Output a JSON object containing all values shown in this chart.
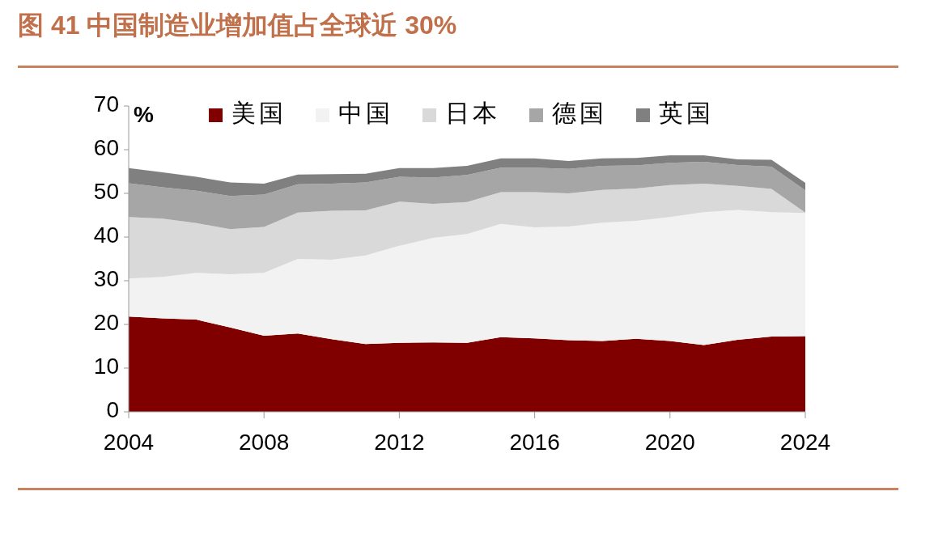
{
  "chart_data": {
    "type": "area",
    "stacked": true,
    "title": "图 41 中国制造业增加值占全球近 30%",
    "ylabel": "%",
    "x": [
      2004,
      2005,
      2006,
      2007,
      2008,
      2009,
      2010,
      2011,
      2012,
      2013,
      2014,
      2015,
      2016,
      2017,
      2018,
      2019,
      2020,
      2021,
      2022,
      2023,
      2024
    ],
    "xlim": [
      2004,
      2024
    ],
    "xticks": [
      2004,
      2008,
      2012,
      2016,
      2020,
      2024
    ],
    "ylim": [
      0,
      70
    ],
    "yticks": [
      0,
      10,
      20,
      30,
      40,
      50,
      60,
      70
    ],
    "legend": "top",
    "grid": false,
    "series": [
      {
        "name": "美国",
        "color": "#800000",
        "values": [
          21.8,
          21.4,
          21.1,
          19.3,
          17.4,
          17.9,
          16.6,
          15.5,
          15.8,
          15.9,
          15.8,
          17.1,
          16.8,
          16.4,
          16.2,
          16.7,
          16.2,
          15.3,
          16.5,
          17.2,
          17.3
        ]
      },
      {
        "name": "中国",
        "color": "#f2f2f2",
        "values": [
          8.7,
          9.5,
          10.7,
          12.2,
          14.4,
          17.1,
          18.2,
          20.3,
          22.2,
          23.9,
          24.9,
          25.9,
          25.4,
          26.0,
          27.1,
          27.0,
          28.4,
          30.4,
          29.7,
          28.5,
          28.2
        ]
      },
      {
        "name": "日本",
        "color": "#d9d9d9",
        "values": [
          14.1,
          13.3,
          11.4,
          10.3,
          10.5,
          10.6,
          11.2,
          10.3,
          10.1,
          7.8,
          7.3,
          7.3,
          8.1,
          7.6,
          7.5,
          7.4,
          7.3,
          6.5,
          5.5,
          5.3,
          0.1
        ]
      },
      {
        "name": "德国",
        "color": "#a6a6a6",
        "values": [
          7.7,
          7.2,
          7.4,
          7.6,
          7.4,
          6.5,
          6.2,
          6.4,
          5.7,
          6.0,
          6.2,
          5.6,
          5.6,
          5.6,
          5.5,
          5.3,
          5.1,
          5.0,
          4.8,
          5.1,
          5.1
        ]
      },
      {
        "name": "英国",
        "color": "#808080",
        "values": [
          3.5,
          3.4,
          3.2,
          3.1,
          2.5,
          2.2,
          2.2,
          2.0,
          2.0,
          2.2,
          2.1,
          2.1,
          2.1,
          1.8,
          1.7,
          1.7,
          1.7,
          1.5,
          1.3,
          1.6,
          1.7
        ]
      }
    ]
  }
}
